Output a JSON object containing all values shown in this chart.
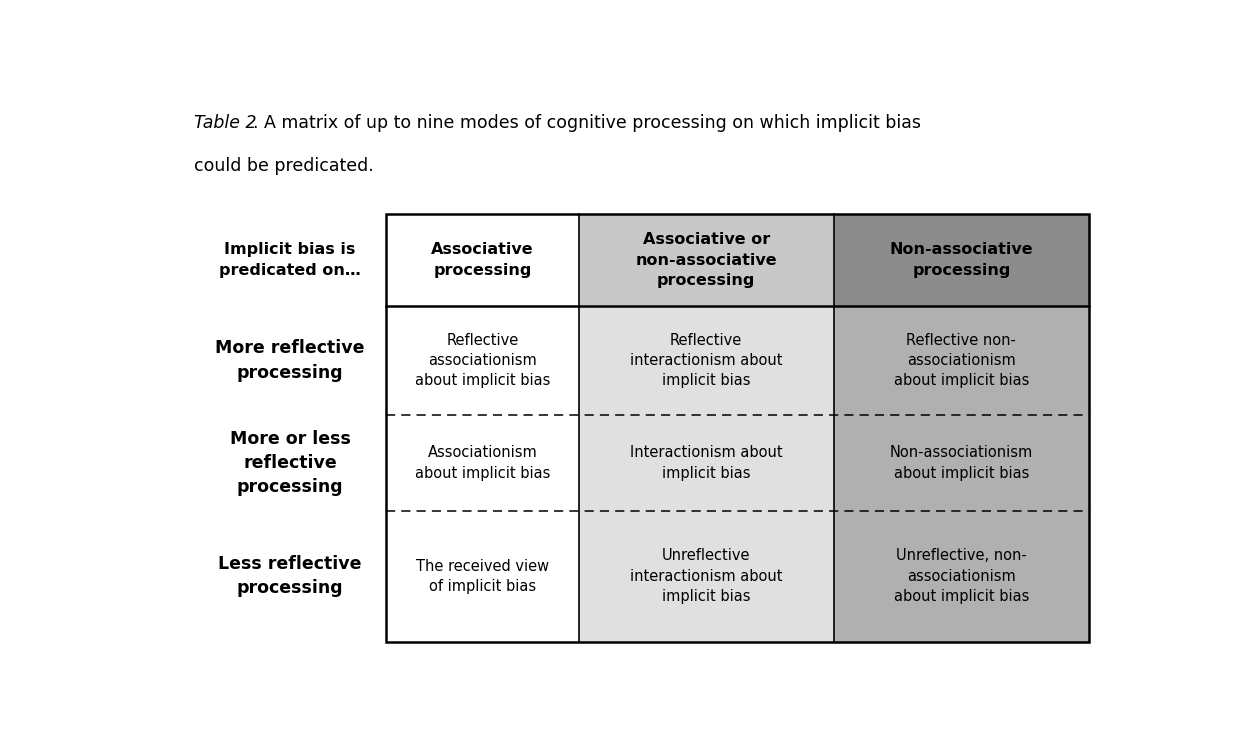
{
  "title_italic": "Table 2",
  "title_rest": ". A matrix of up to nine modes of cognitive processing on which implicit bias could be predicated.",
  "bg_color": "#ffffff",
  "header_col2_bg": "#c8c8c8",
  "header_col3_bg": "#8c8c8c",
  "cell_col1_bg": "#ffffff",
  "cell_col2_bg": "#e0e0e0",
  "cell_col3_bg": "#b0b0b0",
  "top_header_label": "Implicit bias is\npredicated on…",
  "col_headers": [
    "Associative\nprocessing",
    "Associative or\nnon-associative\nprocessing",
    "Non-associative\nprocessing"
  ],
  "row_headers": [
    "More reflective\nprocessing",
    "More or less\nreflective\nprocessing",
    "Less reflective\nprocessing"
  ],
  "cells": [
    [
      "Reflective\nassociationism\nabout implicit bias",
      "Reflective\ninteractionism about\nimplicit bias",
      "Reflective non-\nassociationism\nabout implicit bias"
    ],
    [
      "Associationism\nabout implicit bias",
      "Interactionism about\nimplicit bias",
      "Non-associationism\nabout implicit bias"
    ],
    [
      "The received view\nof implicit bias",
      "Unreflective\ninteractionism about\nimplicit bias",
      "Unreflective, non-\nassociationism\nabout implicit bias"
    ]
  ],
  "figsize": [
    12.42,
    7.4
  ],
  "dpi": 100
}
